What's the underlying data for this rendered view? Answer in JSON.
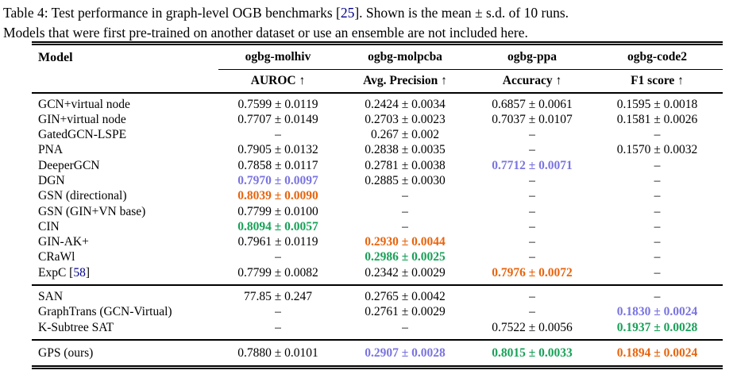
{
  "caption": {
    "line1_pre": "Table 4: Test performance in graph-level OGB benchmarks [",
    "line1_cite": "25",
    "line1_post": "]. Shown is the mean ± s.d. of 10 runs.",
    "line2": "Models that were first pre-trained on another dataset or use an ensemble are not included here."
  },
  "colors": {
    "first_place_green": "#18a158",
    "second_place_orange": "#e8640d",
    "third_place_purple": "#7a74e0",
    "citation_navy": "#00008b"
  },
  "table": {
    "model_header": "Model",
    "datasets": [
      "ogbg-molhiv",
      "ogbg-molpcba",
      "ogbg-ppa",
      "ogbg-code2"
    ],
    "metrics": [
      "AUROC ↑",
      "Avg. Precision ↑",
      "Accuracy ↑",
      "F1 score ↑"
    ],
    "sections": [
      {
        "rows": [
          {
            "model": "GCN+virtual node",
            "values": [
              {
                "text": "0.7599 ± 0.0119",
                "hl": null
              },
              {
                "text": "0.2424 ± 0.0034",
                "hl": null
              },
              {
                "text": "0.6857 ± 0.0061",
                "hl": null
              },
              {
                "text": "0.1595 ± 0.0018",
                "hl": null
              }
            ]
          },
          {
            "model": "GIN+virtual node",
            "values": [
              {
                "text": "0.7707 ± 0.0149",
                "hl": null
              },
              {
                "text": "0.2703 ± 0.0023",
                "hl": null
              },
              {
                "text": "0.7037 ± 0.0107",
                "hl": null
              },
              {
                "text": "0.1581 ± 0.0026",
                "hl": null
              }
            ]
          },
          {
            "model": "GatedGCN-LSPE",
            "values": [
              {
                "text": "–",
                "hl": null
              },
              {
                "text": "0.267 ± 0.002",
                "hl": null
              },
              {
                "text": "–",
                "hl": null
              },
              {
                "text": "–",
                "hl": null
              }
            ]
          },
          {
            "model": "PNA",
            "values": [
              {
                "text": "0.7905 ± 0.0132",
                "hl": null
              },
              {
                "text": "0.2838 ± 0.0035",
                "hl": null
              },
              {
                "text": "–",
                "hl": null
              },
              {
                "text": "0.1570 ± 0.0032",
                "hl": null
              }
            ]
          },
          {
            "model": "DeeperGCN",
            "values": [
              {
                "text": "0.7858 ± 0.0117",
                "hl": null
              },
              {
                "text": "0.2781 ± 0.0038",
                "hl": null
              },
              {
                "text": "0.7712 ± 0.0071",
                "hl": "third"
              },
              {
                "text": "–",
                "hl": null
              }
            ]
          },
          {
            "model": "DGN",
            "values": [
              {
                "text": "0.7970 ± 0.0097",
                "hl": "third"
              },
              {
                "text": "0.2885 ± 0.0030",
                "hl": null
              },
              {
                "text": "–",
                "hl": null
              },
              {
                "text": "–",
                "hl": null
              }
            ]
          },
          {
            "model": "GSN (directional)",
            "values": [
              {
                "text": "0.8039 ± 0.0090",
                "hl": "second"
              },
              {
                "text": "–",
                "hl": null
              },
              {
                "text": "–",
                "hl": null
              },
              {
                "text": "–",
                "hl": null
              }
            ]
          },
          {
            "model": "GSN (GIN+VN base)",
            "values": [
              {
                "text": "0.7799 ± 0.0100",
                "hl": null
              },
              {
                "text": "–",
                "hl": null
              },
              {
                "text": "–",
                "hl": null
              },
              {
                "text": "–",
                "hl": null
              }
            ]
          },
          {
            "model": "CIN",
            "values": [
              {
                "text": "0.8094 ± 0.0057",
                "hl": "first"
              },
              {
                "text": "–",
                "hl": null
              },
              {
                "text": "–",
                "hl": null
              },
              {
                "text": "–",
                "hl": null
              }
            ]
          },
          {
            "model": "GIN-AK+",
            "values": [
              {
                "text": "0.7961 ± 0.0119",
                "hl": null
              },
              {
                "text": "0.2930 ± 0.0044",
                "hl": "second"
              },
              {
                "text": "–",
                "hl": null
              },
              {
                "text": "–",
                "hl": null
              }
            ]
          },
          {
            "model": "CRaWl",
            "values": [
              {
                "text": "–",
                "hl": null
              },
              {
                "text": "0.2986 ± 0.0025",
                "hl": "first"
              },
              {
                "text": "–",
                "hl": null
              },
              {
                "text": "–",
                "hl": null
              }
            ]
          },
          {
            "model": "ExpC [",
            "cite": "58",
            "model_post": "]",
            "values": [
              {
                "text": "0.7799 ± 0.0082",
                "hl": null
              },
              {
                "text": "0.2342 ± 0.0029",
                "hl": null
              },
              {
                "text": "0.7976 ± 0.0072",
                "hl": "second"
              },
              {
                "text": "–",
                "hl": null
              }
            ]
          }
        ]
      },
      {
        "rows": [
          {
            "model": "SAN",
            "values": [
              {
                "text": "77.85 ± 0.247",
                "hl": null
              },
              {
                "text": "0.2765 ± 0.0042",
                "hl": null
              },
              {
                "text": "–",
                "hl": null
              },
              {
                "text": "–",
                "hl": null
              }
            ]
          },
          {
            "model": "GraphTrans (GCN-Virtual)",
            "values": [
              {
                "text": "–",
                "hl": null
              },
              {
                "text": "0.2761 ± 0.0029",
                "hl": null
              },
              {
                "text": "–",
                "hl": null
              },
              {
                "text": "0.1830 ± 0.0024",
                "hl": "third"
              }
            ]
          },
          {
            "model": "K-Subtree SAT",
            "values": [
              {
                "text": "–",
                "hl": null
              },
              {
                "text": "–",
                "hl": null
              },
              {
                "text": "0.7522 ± 0.0056",
                "hl": null
              },
              {
                "text": "0.1937 ± 0.0028",
                "hl": "first"
              }
            ]
          }
        ]
      },
      {
        "rows": [
          {
            "model": "GPS (ours)",
            "values": [
              {
                "text": "0.7880 ± 0.0101",
                "hl": null
              },
              {
                "text": "0.2907 ± 0.0028",
                "hl": "third"
              },
              {
                "text": "0.8015 ± 0.0033",
                "hl": "first"
              },
              {
                "text": "0.1894 ± 0.0024",
                "hl": "second"
              }
            ]
          }
        ]
      }
    ]
  }
}
